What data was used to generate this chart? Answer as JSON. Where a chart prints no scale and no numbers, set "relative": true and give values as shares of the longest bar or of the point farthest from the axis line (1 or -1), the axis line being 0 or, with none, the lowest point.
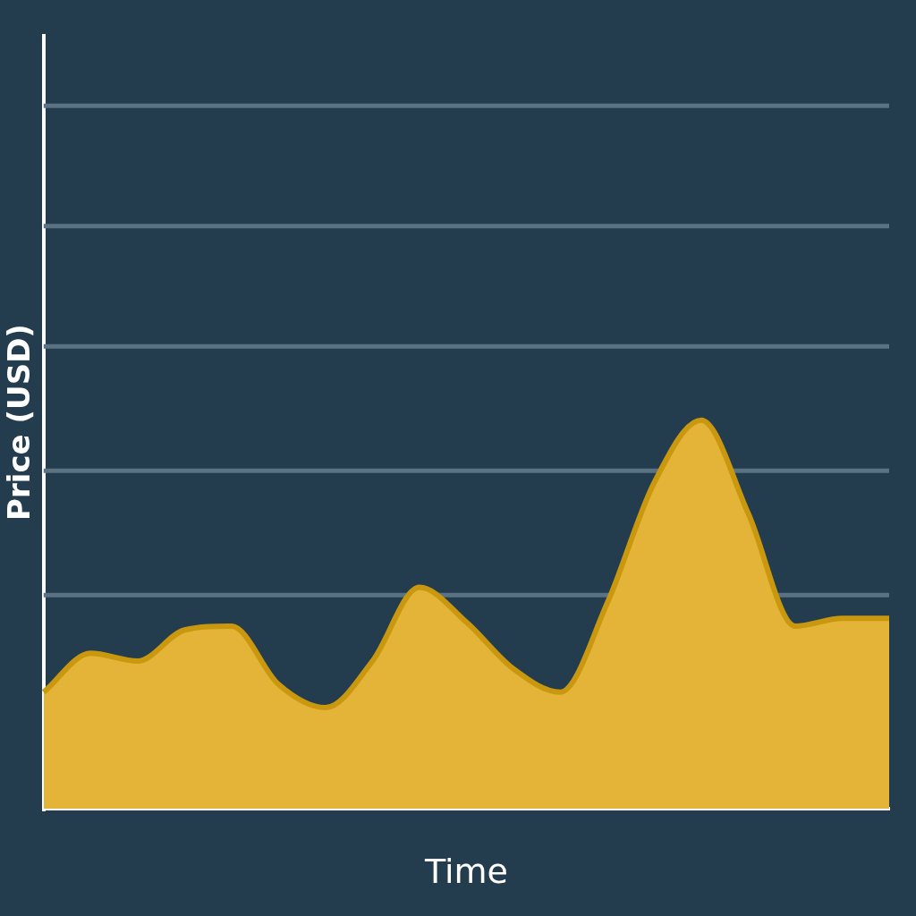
{
  "chart_data": {
    "type": "area",
    "xlabel": "Time",
    "ylabel": "Price (USD)",
    "relative": true,
    "ref_lines": [
      {
        "axis": "y",
        "value": 0.55,
        "color": "#5a7282"
      },
      {
        "axis": "y",
        "value": 0.87,
        "color": "#5a7282"
      },
      {
        "axis": "y",
        "value": 1.19,
        "color": "#5a7282"
      },
      {
        "axis": "y",
        "value": 1.5,
        "color": "#5a7282"
      },
      {
        "axis": "y",
        "value": 1.81,
        "color": "#5a7282"
      }
    ],
    "legend": false,
    "color": "#e3b437",
    "categories": [
      null,
      null,
      null,
      null,
      null,
      null,
      null,
      null,
      null,
      null,
      null,
      null,
      null,
      null,
      null,
      null,
      null,
      null,
      null
    ],
    "values": [
      0.3,
      0.4,
      0.38,
      0.46,
      0.47,
      0.32,
      0.26,
      0.38,
      0.57,
      0.48,
      0.36,
      0.3,
      0.53,
      0.84,
      1.0,
      0.76,
      0.47,
      0.49,
      0.49
    ]
  }
}
